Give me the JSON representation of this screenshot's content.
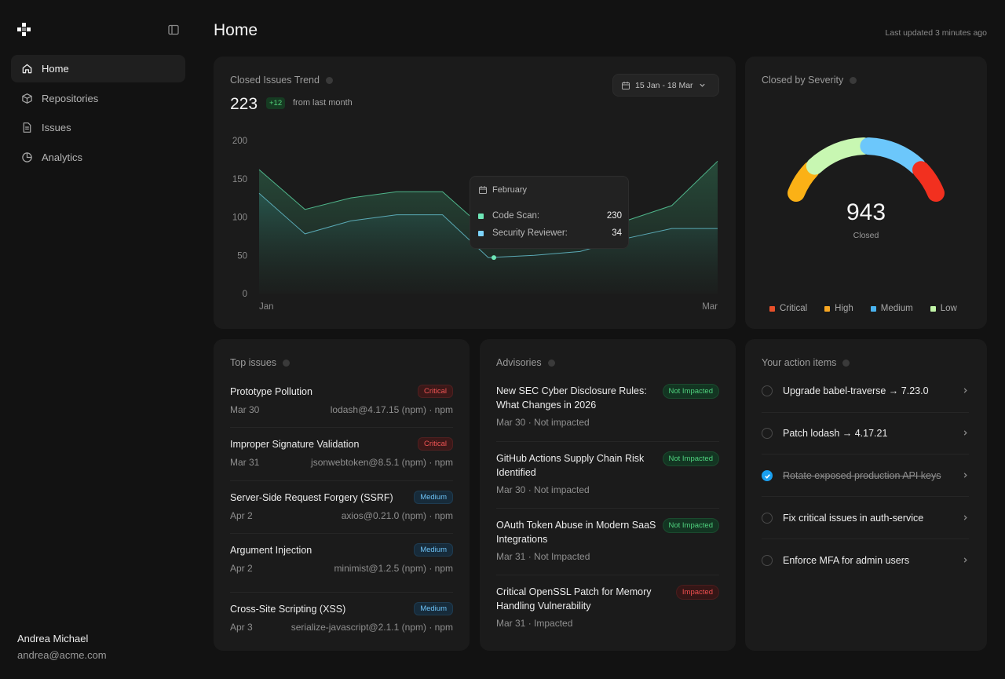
{
  "sidebar": {
    "items": [
      {
        "label": "Home",
        "icon": "home-icon",
        "active": true
      },
      {
        "label": "Repositories",
        "icon": "box-icon",
        "active": false
      },
      {
        "label": "Issues",
        "icon": "document-icon",
        "active": false
      },
      {
        "label": "Analytics",
        "icon": "pie-chart-icon",
        "active": false
      }
    ],
    "user": {
      "name": "Andrea Michael",
      "email": "andrea@acme.com"
    }
  },
  "header": {
    "title": "Home",
    "updated": "Last updated 3 minutes ago"
  },
  "trend": {
    "title": "Closed Issues Trend",
    "total": "223",
    "delta": "+12",
    "delta_text": "from last month",
    "date_range": "15 Jan - 18 Mar",
    "tooltip": {
      "label": "February",
      "rows": [
        {
          "name": "Code Scan:",
          "value": "230",
          "color": "#6ee7b7"
        },
        {
          "name": "Security Reviewer:",
          "value": "34",
          "color": "#7dd3fc"
        }
      ]
    }
  },
  "chart_data": {
    "type": "area",
    "title": "Closed Issues Trend",
    "x_tick_labels": [
      "Jan",
      "Mar"
    ],
    "y_ticks": [
      0,
      50,
      100,
      150,
      200
    ],
    "ylim": [
      0,
      200
    ],
    "x": [
      0,
      1,
      2,
      3,
      4,
      5,
      6,
      7,
      8,
      9,
      10
    ],
    "series": [
      {
        "name": "Code Scan",
        "color": "#6ee7b7",
        "values": [
          162,
          110,
          125,
          133,
          133,
          80,
          80,
          88,
          95,
          115,
          173
        ]
      },
      {
        "name": "Security Reviewer",
        "color": "#7dd3fc",
        "values": [
          131,
          78,
          95,
          103,
          103,
          47,
          50,
          55,
          72,
          85,
          85
        ]
      }
    ]
  },
  "severity": {
    "title": "Closed by Severity",
    "total": "943",
    "total_label": "Closed",
    "legend": [
      {
        "label": "Critical",
        "color": "#e8502a"
      },
      {
        "label": "High",
        "color": "#f7a622"
      },
      {
        "label": "Medium",
        "color": "#4ab3f0"
      },
      {
        "label": "Low",
        "color": "#c2f5a8"
      }
    ],
    "segments": [
      {
        "label": "High",
        "color": "#fbb116",
        "value": 0.18
      },
      {
        "label": "Low",
        "color": "#c8f7b2",
        "value": 0.32
      },
      {
        "label": "Medium",
        "color": "#6cc7fb",
        "value": 0.32
      },
      {
        "label": "Critical",
        "color": "#f2301f",
        "value": 0.18
      }
    ]
  },
  "issues": {
    "title": "Top issues",
    "items": [
      {
        "title": "Prototype Pollution",
        "date": "Mar 30",
        "package": "lodash@4.17.15 (npm)",
        "ecosystem": "npm",
        "severity": "Critical"
      },
      {
        "title": "Improper Signature Validation",
        "date": "Mar 31",
        "package": "jsonwebtoken@8.5.1 (npm)",
        "ecosystem": "npm",
        "severity": "Critical"
      },
      {
        "title": "Server-Side Request Forgery (SSRF)",
        "date": "Apr 2",
        "package": "axios@0.21.0 (npm)",
        "ecosystem": "npm",
        "severity": "Medium"
      },
      {
        "title": "Argument Injection",
        "date": "Apr 2",
        "package": "minimist@1.2.5 (npm)",
        "ecosystem": "npm",
        "severity": "Medium"
      },
      {
        "title": "Cross-Site Scripting (XSS)",
        "date": "Apr 3",
        "package": "serialize-javascript@2.1.1 (npm)",
        "ecosystem": "npm",
        "severity": "Medium"
      }
    ]
  },
  "advisories": {
    "title": "Advisories",
    "items": [
      {
        "title": "New SEC Cyber Disclosure Rules: What Changes in 2026",
        "date": "Mar 30",
        "status_text": "Not impacted",
        "badge": "Not Impacted",
        "impacted": false
      },
      {
        "title": "GitHub Actions Supply Chain Risk Identified",
        "date": "Mar 30",
        "status_text": "Not impacted",
        "badge": "Not Impacted",
        "impacted": false
      },
      {
        "title": "OAuth Token Abuse in Modern SaaS Integrations",
        "date": "Mar 31",
        "status_text": "Not Impacted",
        "badge": "Not Impacted",
        "impacted": false
      },
      {
        "title": "Critical OpenSSL Patch for Memory Handling Vulnerability",
        "date": "Mar 31",
        "status_text": "Impacted",
        "badge": "Impacted",
        "impacted": true
      }
    ]
  },
  "actions": {
    "title": "Your action items",
    "items": [
      {
        "label": "Upgrade babel-traverse → 7.23.0",
        "done": false
      },
      {
        "label": "Patch lodash → 4.17.21",
        "done": false
      },
      {
        "label": "Rotate exposed production API keys",
        "done": true
      },
      {
        "label": "Fix critical issues in auth-service",
        "done": false
      },
      {
        "label": "Enforce MFA for admin users",
        "done": false
      }
    ]
  }
}
